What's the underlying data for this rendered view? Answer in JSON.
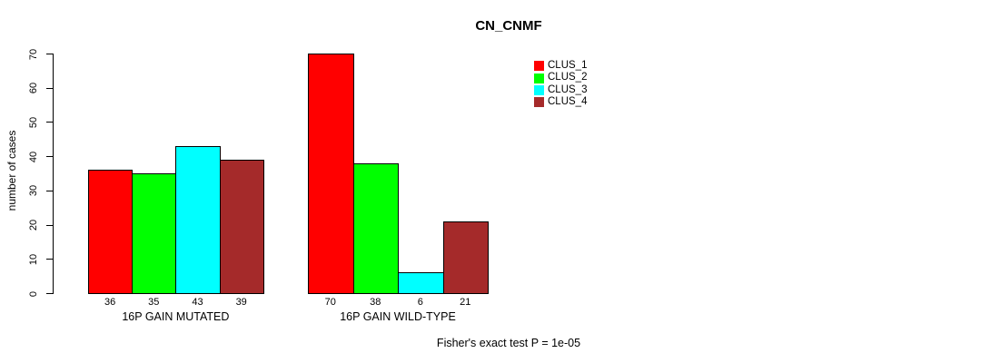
{
  "title": "CN_CNMF",
  "footnote": "Fisher's exact test P = 1e-05",
  "chart_data": {
    "type": "bar",
    "title": "CN_CNMF",
    "xlabel": "",
    "ylabel": "number of cases",
    "ylim": [
      0,
      70
    ],
    "yticks": [
      0,
      10,
      20,
      30,
      40,
      50,
      60,
      70
    ],
    "grid": false,
    "legend_position": "top-right",
    "groups": [
      {
        "label": "16P GAIN MUTATED",
        "values": [
          36,
          35,
          43,
          39
        ]
      },
      {
        "label": "16P GAIN WILD-TYPE",
        "values": [
          70,
          38,
          6,
          21
        ]
      }
    ],
    "series": [
      {
        "name": "CLUS_1",
        "color": "#FF0000"
      },
      {
        "name": "CLUS_2",
        "color": "#00FF00"
      },
      {
        "name": "CLUS_3",
        "color": "#00FFFF"
      },
      {
        "name": "CLUS_4",
        "color": "#A52A2A"
      }
    ],
    "annotation": "Fisher's exact test P = 1e-05"
  }
}
